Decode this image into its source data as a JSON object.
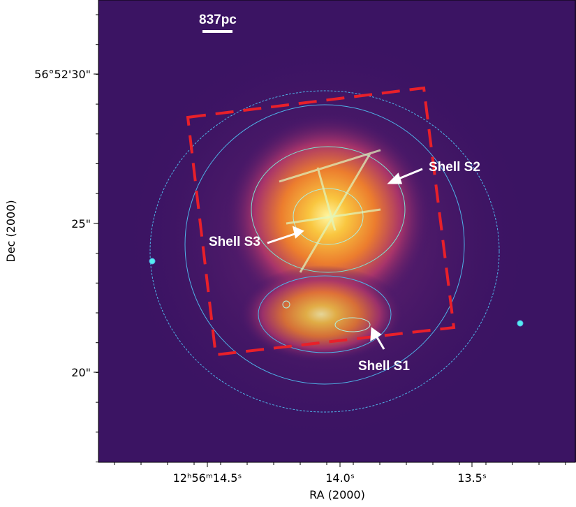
{
  "image": {
    "scale_bar": "837pc",
    "annotations": [
      "Shell S2",
      "Shell S3",
      "Shell S1"
    ]
  },
  "axes": {
    "x_label": "RA (2000)",
    "y_label": "Dec (2000)",
    "x_ticks": [
      "12ʰ56ᵐ14.5ˢ",
      "14.0ˢ",
      "13.5ˢ"
    ],
    "y_ticks": [
      "56°52'30\"",
      "25\"",
      "20\""
    ]
  }
}
